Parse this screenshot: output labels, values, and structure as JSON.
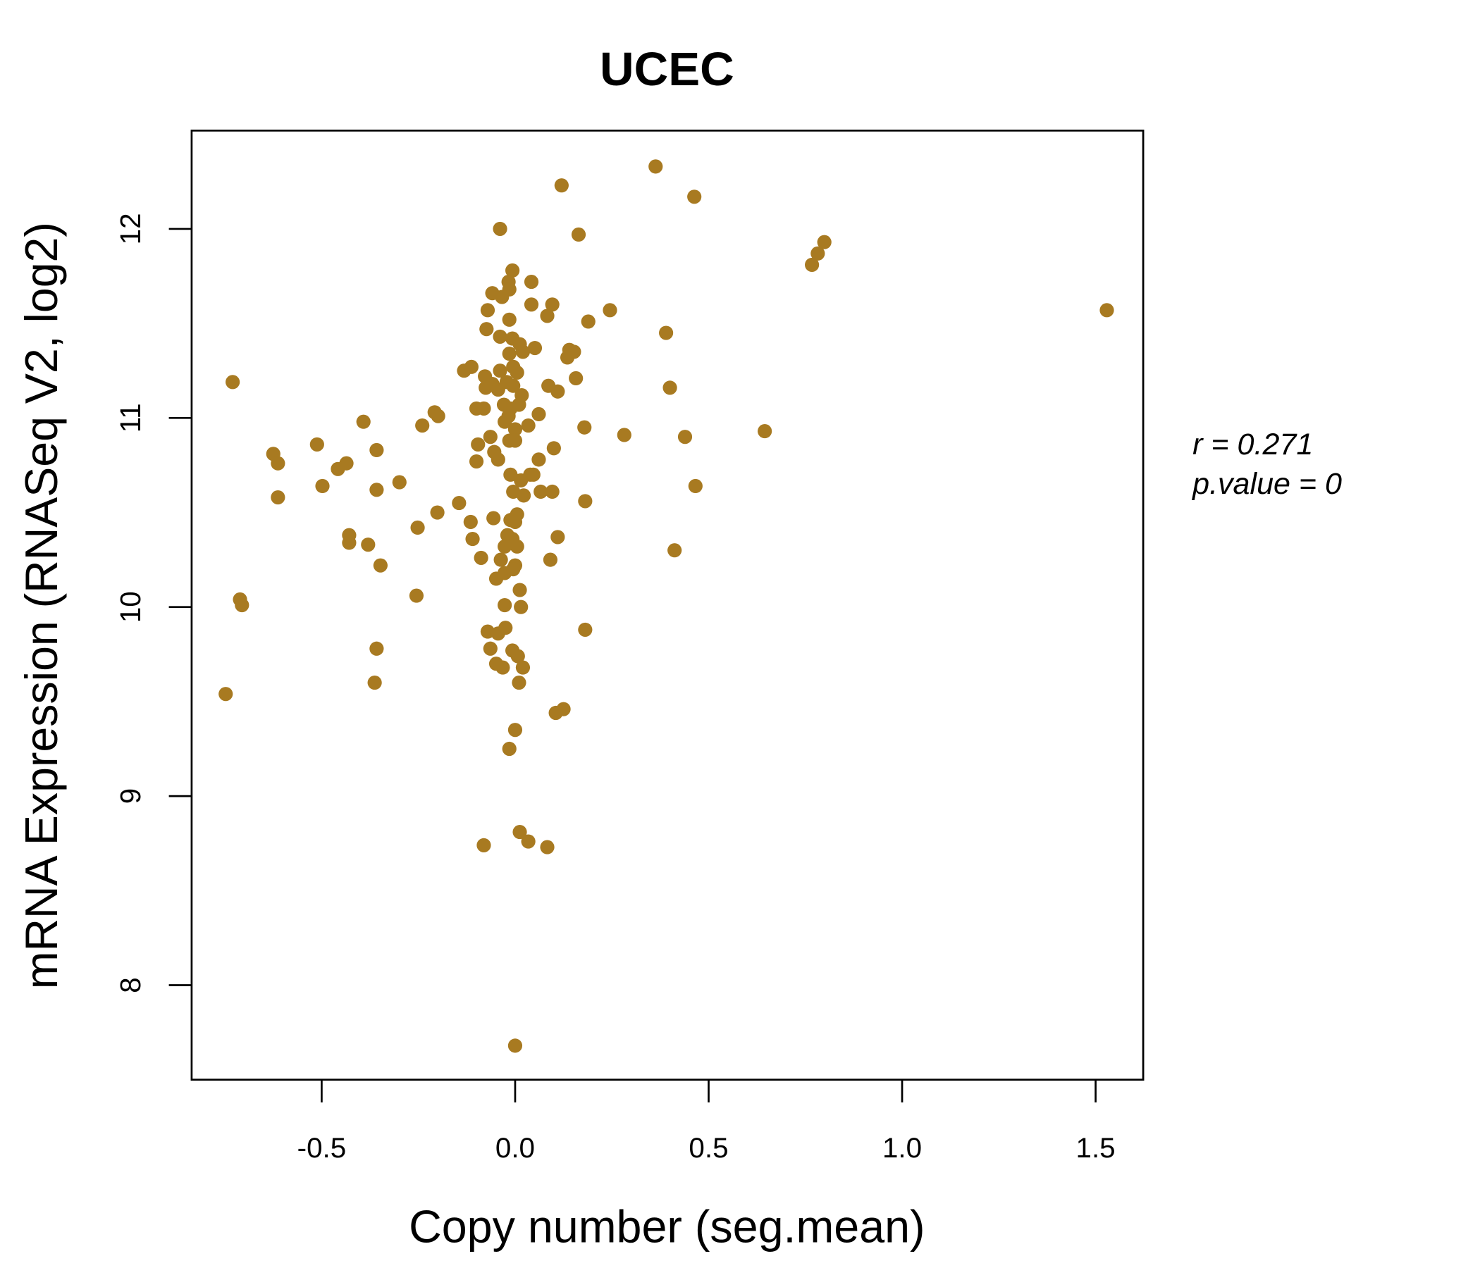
{
  "chart_data": {
    "type": "scatter",
    "title": "UCEC",
    "xlabel": "Copy number (seg.mean)",
    "ylabel": "mRNA Expression (RNASeq V2, log2)",
    "xlim": [
      -0.836,
      1.623
    ],
    "ylim": [
      7.5,
      12.52
    ],
    "xticks": [
      -0.5,
      0.0,
      0.5,
      1.0,
      1.5
    ],
    "xtick_labels": [
      "-0.5",
      "0.0",
      "0.5",
      "1.0",
      "1.5"
    ],
    "yticks": [
      8,
      9,
      10,
      11,
      12
    ],
    "ytick_labels": [
      "8",
      "9",
      "10",
      "11",
      "12"
    ],
    "grid": false,
    "point_color": "#A87A21",
    "annotations": [
      "r = 0.271",
      "p.value = 0"
    ],
    "points": [
      [
        0.363,
        12.33
      ],
      [
        0.12,
        12.23
      ],
      [
        0.463,
        12.17
      ],
      [
        -0.039,
        12.0
      ],
      [
        0.164,
        11.97
      ],
      [
        0.799,
        11.93
      ],
      [
        0.782,
        11.87
      ],
      [
        0.767,
        11.81
      ],
      [
        1.529,
        11.57
      ],
      [
        -0.007,
        11.78
      ],
      [
        0.042,
        11.72
      ],
      [
        -0.017,
        11.72
      ],
      [
        -0.059,
        11.66
      ],
      [
        -0.015,
        11.68
      ],
      [
        -0.034,
        11.64
      ],
      [
        -0.071,
        11.57
      ],
      [
        0.042,
        11.6
      ],
      [
        0.096,
        11.6
      ],
      [
        0.083,
        11.54
      ],
      [
        0.245,
        11.57
      ],
      [
        0.189,
        11.51
      ],
      [
        -0.015,
        11.52
      ],
      [
        -0.074,
        11.47
      ],
      [
        -0.039,
        11.43
      ],
      [
        -0.007,
        11.42
      ],
      [
        0.012,
        11.39
      ],
      [
        0.051,
        11.37
      ],
      [
        0.39,
        11.45
      ],
      [
        0.14,
        11.36
      ],
      [
        0.152,
        11.35
      ],
      [
        0.135,
        11.32
      ],
      [
        -0.015,
        11.34
      ],
      [
        0.02,
        11.35
      ],
      [
        -0.132,
        11.25
      ],
      [
        -0.113,
        11.27
      ],
      [
        -0.039,
        11.25
      ],
      [
        -0.005,
        11.27
      ],
      [
        0.005,
        11.24
      ],
      [
        -0.078,
        11.22
      ],
      [
        -0.059,
        11.18
      ],
      [
        -0.076,
        11.16
      ],
      [
        -0.044,
        11.15
      ],
      [
        -0.022,
        11.19
      ],
      [
        -0.005,
        11.17
      ],
      [
        0.017,
        11.12
      ],
      [
        0.157,
        11.21
      ],
      [
        0.086,
        11.17
      ],
      [
        0.11,
        11.14
      ],
      [
        0.4,
        11.16
      ],
      [
        -0.73,
        11.19
      ],
      [
        -0.1,
        11.05
      ],
      [
        -0.081,
        11.05
      ],
      [
        -0.029,
        11.07
      ],
      [
        -0.012,
        11.05
      ],
      [
        0.01,
        11.07
      ],
      [
        -0.017,
        11.01
      ],
      [
        0.061,
        11.02
      ],
      [
        -0.208,
        11.03
      ],
      [
        -0.199,
        11.01
      ],
      [
        -0.24,
        10.96
      ],
      [
        -0.392,
        10.98
      ],
      [
        -0.027,
        10.98
      ],
      [
        0.0,
        10.94
      ],
      [
        0.034,
        10.96
      ],
      [
        0.179,
        10.95
      ],
      [
        0.282,
        10.91
      ],
      [
        0.439,
        10.9
      ],
      [
        0.645,
        10.93
      ],
      [
        -0.064,
        10.9
      ],
      [
        -0.096,
        10.86
      ],
      [
        -0.015,
        10.88
      ],
      [
        0.0,
        10.88
      ],
      [
        0.1,
        10.84
      ],
      [
        -0.512,
        10.86
      ],
      [
        -0.625,
        10.81
      ],
      [
        -0.358,
        10.83
      ],
      [
        -0.054,
        10.82
      ],
      [
        -0.044,
        10.78
      ],
      [
        -0.1,
        10.77
      ],
      [
        -0.613,
        10.76
      ],
      [
        -0.436,
        10.76
      ],
      [
        -0.458,
        10.73
      ],
      [
        0.061,
        10.78
      ],
      [
        -0.012,
        10.7
      ],
      [
        0.039,
        10.7
      ],
      [
        0.015,
        10.67
      ],
      [
        0.047,
        10.7
      ],
      [
        -0.498,
        10.64
      ],
      [
        -0.299,
        10.66
      ],
      [
        -0.358,
        10.62
      ],
      [
        0.466,
        10.64
      ],
      [
        -0.005,
        10.61
      ],
      [
        0.022,
        10.59
      ],
      [
        0.066,
        10.61
      ],
      [
        0.096,
        10.61
      ],
      [
        0.181,
        10.56
      ],
      [
        -0.613,
        10.58
      ],
      [
        -0.145,
        10.55
      ],
      [
        -0.201,
        10.5
      ],
      [
        -0.252,
        10.42
      ],
      [
        -0.115,
        10.45
      ],
      [
        -0.056,
        10.47
      ],
      [
        -0.012,
        10.46
      ],
      [
        0.005,
        10.49
      ],
      [
        0.0,
        10.45
      ],
      [
        -0.02,
        10.38
      ],
      [
        -0.007,
        10.36
      ],
      [
        -0.11,
        10.36
      ],
      [
        0.11,
        10.37
      ],
      [
        -0.429,
        10.38
      ],
      [
        -0.429,
        10.34
      ],
      [
        -0.38,
        10.33
      ],
      [
        0.005,
        10.32
      ],
      [
        -0.027,
        10.32
      ],
      [
        0.412,
        10.3
      ],
      [
        -0.088,
        10.26
      ],
      [
        0.091,
        10.25
      ],
      [
        -0.348,
        10.22
      ],
      [
        -0.037,
        10.25
      ],
      [
        0.0,
        10.22
      ],
      [
        -0.049,
        10.15
      ],
      [
        -0.027,
        10.18
      ],
      [
        -0.005,
        10.2
      ],
      [
        0.012,
        10.09
      ],
      [
        -0.255,
        10.06
      ],
      [
        -0.711,
        10.04
      ],
      [
        -0.706,
        10.01
      ],
      [
        -0.027,
        10.01
      ],
      [
        0.015,
        10.0
      ],
      [
        0.181,
        9.88
      ],
      [
        -0.071,
        9.87
      ],
      [
        -0.044,
        9.86
      ],
      [
        -0.025,
        9.89
      ],
      [
        -0.064,
        9.78
      ],
      [
        -0.358,
        9.78
      ],
      [
        -0.007,
        9.77
      ],
      [
        0.007,
        9.74
      ],
      [
        -0.032,
        9.68
      ],
      [
        -0.049,
        9.7
      ],
      [
        0.02,
        9.68
      ],
      [
        -0.363,
        9.6
      ],
      [
        0.01,
        9.6
      ],
      [
        -0.748,
        9.54
      ],
      [
        0.125,
        9.46
      ],
      [
        0.105,
        9.44
      ],
      [
        0.0,
        9.35
      ],
      [
        -0.015,
        9.25
      ],
      [
        0.012,
        8.81
      ],
      [
        0.034,
        8.76
      ],
      [
        -0.081,
        8.74
      ],
      [
        0.083,
        8.73
      ],
      [
        0.0,
        7.68
      ]
    ]
  }
}
